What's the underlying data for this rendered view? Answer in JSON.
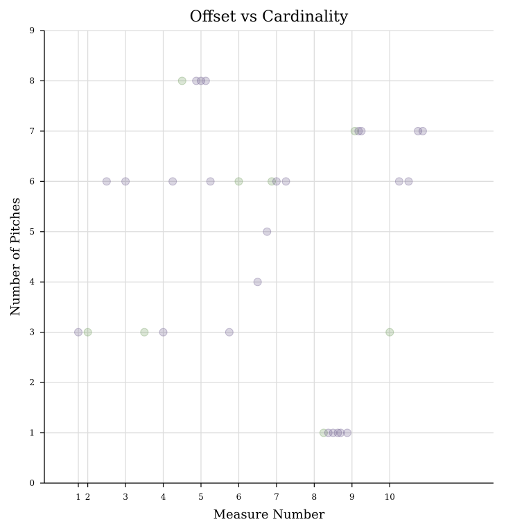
{
  "chart_data": {
    "type": "scatter",
    "title": "Offset vs Cardinality",
    "xlabel": "Measure Number",
    "ylabel": "Number of Pitches",
    "xlim": [
      0.1,
      12.0
    ],
    "ylim": [
      0,
      9
    ],
    "xticks": [
      {
        "value": 1.0,
        "label": "1"
      },
      {
        "value": 1.25,
        "label": "2"
      },
      {
        "value": 2.25,
        "label": "3"
      },
      {
        "value": 3.25,
        "label": "4"
      },
      {
        "value": 4.25,
        "label": "5"
      },
      {
        "value": 5.25,
        "label": "6"
      },
      {
        "value": 6.25,
        "label": "7"
      },
      {
        "value": 7.25,
        "label": "8"
      },
      {
        "value": 8.25,
        "label": "9"
      },
      {
        "value": 9.25,
        "label": "10"
      }
    ],
    "x_gridlines": [
      1.0,
      1.25,
      2.25,
      3.25,
      4.25,
      5.25,
      6.25,
      7.25,
      8.25,
      9.25
    ],
    "yticks": [
      0,
      1,
      2,
      3,
      4,
      5,
      6,
      7,
      8,
      9
    ],
    "grid": true,
    "colors": {
      "purple": "#6a5a8c",
      "green": "#6e9a5a"
    },
    "marker_opacity": 0.25,
    "points": [
      {
        "x": 1.0,
        "y": 3,
        "color": "purple"
      },
      {
        "x": 1.25,
        "y": 3,
        "color": "green"
      },
      {
        "x": 1.75,
        "y": 6,
        "color": "purple"
      },
      {
        "x": 2.25,
        "y": 6,
        "color": "purple"
      },
      {
        "x": 2.75,
        "y": 3,
        "color": "green"
      },
      {
        "x": 3.25,
        "y": 3,
        "color": "purple"
      },
      {
        "x": 3.5,
        "y": 6,
        "color": "purple"
      },
      {
        "x": 3.75,
        "y": 8,
        "color": "green"
      },
      {
        "x": 4.125,
        "y": 8,
        "color": "purple"
      },
      {
        "x": 4.25,
        "y": 8,
        "color": "purple"
      },
      {
        "x": 4.375,
        "y": 8,
        "color": "purple"
      },
      {
        "x": 4.5,
        "y": 6,
        "color": "purple"
      },
      {
        "x": 5.0,
        "y": 3,
        "color": "purple"
      },
      {
        "x": 5.25,
        "y": 6,
        "color": "green"
      },
      {
        "x": 5.75,
        "y": 4,
        "color": "purple"
      },
      {
        "x": 6.0,
        "y": 5,
        "color": "purple"
      },
      {
        "x": 6.125,
        "y": 6,
        "color": "green"
      },
      {
        "x": 6.25,
        "y": 6,
        "color": "purple"
      },
      {
        "x": 6.5,
        "y": 6,
        "color": "purple"
      },
      {
        "x": 7.5,
        "y": 1,
        "color": "green"
      },
      {
        "x": 7.625,
        "y": 1,
        "color": "purple"
      },
      {
        "x": 7.75,
        "y": 1,
        "color": "purple"
      },
      {
        "x": 7.875,
        "y": 1,
        "color": "purple"
      },
      {
        "x": 7.95,
        "y": 1,
        "color": "purple"
      },
      {
        "x": 8.125,
        "y": 1,
        "color": "purple"
      },
      {
        "x": 8.325,
        "y": 7,
        "color": "green"
      },
      {
        "x": 8.425,
        "y": 7,
        "color": "purple"
      },
      {
        "x": 8.5,
        "y": 7,
        "color": "purple"
      },
      {
        "x": 9.25,
        "y": 3,
        "color": "green"
      },
      {
        "x": 9.5,
        "y": 6,
        "color": "purple"
      },
      {
        "x": 9.75,
        "y": 6,
        "color": "purple"
      },
      {
        "x": 10.0,
        "y": 7,
        "color": "purple"
      },
      {
        "x": 10.125,
        "y": 7,
        "color": "purple"
      }
    ]
  }
}
